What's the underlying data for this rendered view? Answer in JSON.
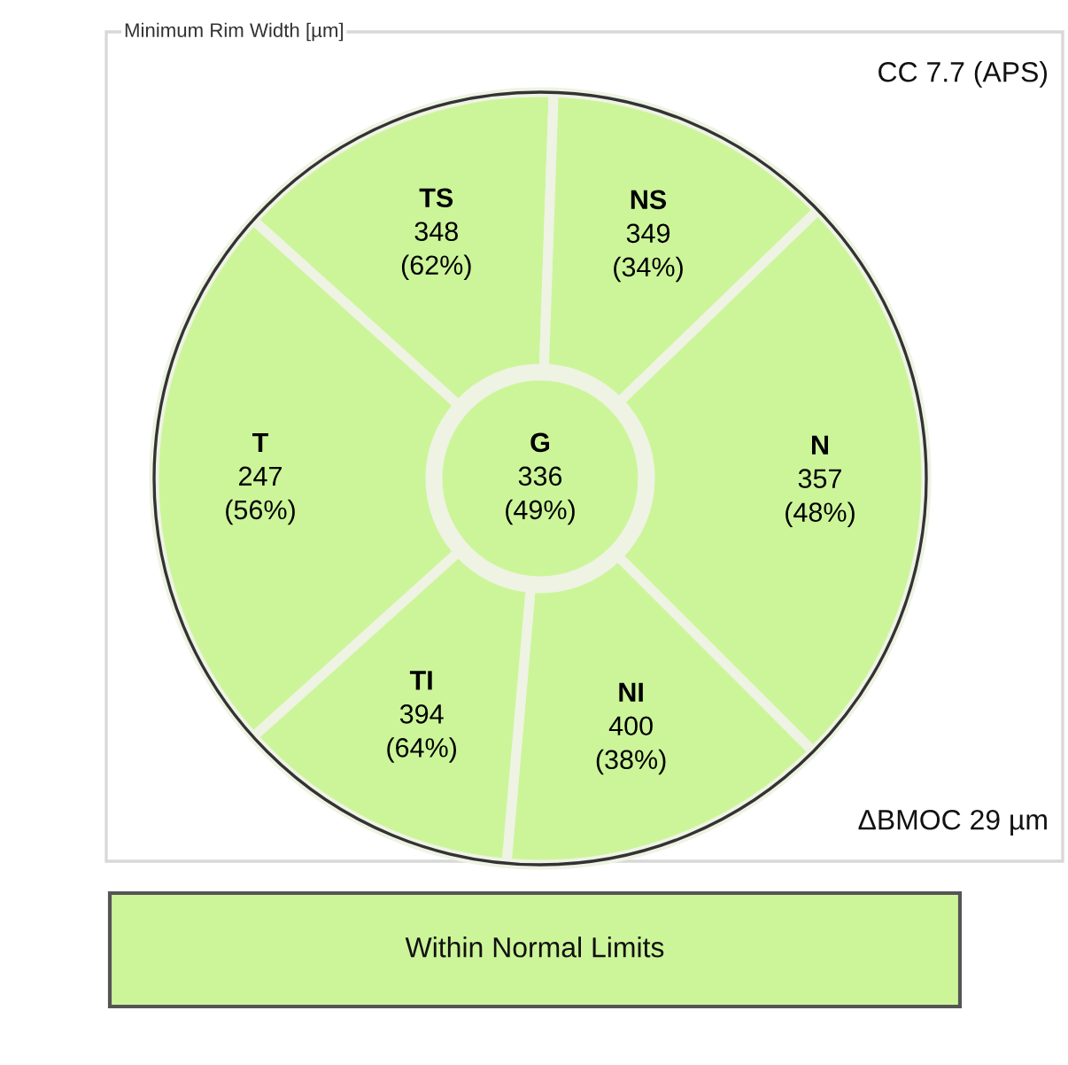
{
  "chart_data": {
    "type": "other",
    "title": "Minimum Rim Width [µm]",
    "subtitle": "CC 7.7 (APS)",
    "categories": [
      "G",
      "T",
      "TS",
      "NS",
      "N",
      "NI",
      "TI"
    ],
    "data_labels": true,
    "series": [
      {
        "color": "#ccf599",
        "values": [
          336,
          247,
          348,
          349,
          357,
          400,
          394
        ]
      },
      {
        "values": [
          49,
          56,
          62,
          34,
          48,
          38,
          64
        ],
        "value_labels": [
          "(49%)",
          "(56%)",
          "(62%)",
          "(34%)",
          "(48%)",
          "(38%)",
          "(64%)"
        ]
      }
    ],
    "annotations": [
      "ΔBMOC 29 µm",
      "Within Normal Limits"
    ]
  }
}
